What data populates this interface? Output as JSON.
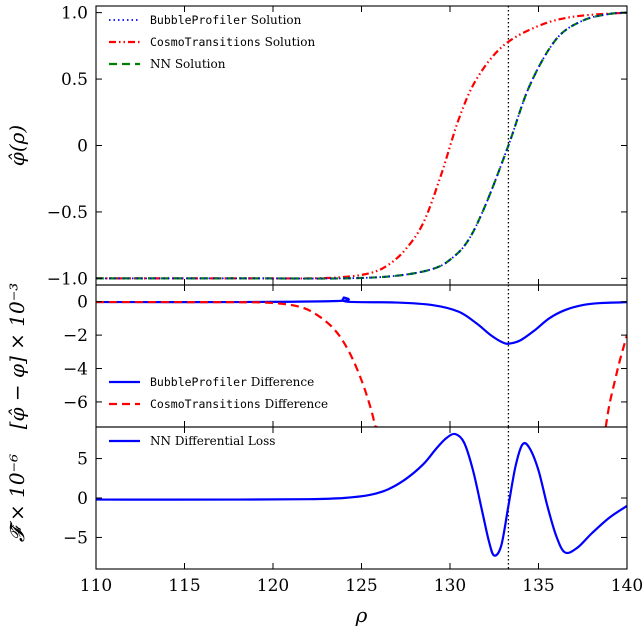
{
  "chart_data": [
    {
      "type": "line",
      "panel": "top",
      "ylabel": "φ̂(ρ)",
      "xlim": [
        110,
        140
      ],
      "ylim": [
        -1.05,
        1.05
      ],
      "yticks": [
        -1.0,
        -0.5,
        0,
        0.5,
        1.0
      ],
      "ytick_labels": [
        "−1.0",
        "−0.5",
        "0",
        "0.5",
        "1.0"
      ],
      "vline_x": 133.3,
      "legend": "top-left",
      "series": [
        {
          "name_mono": "BubbleProfiler",
          "name_suffix": " Solution",
          "color": "#0000ff",
          "style": "dotted",
          "x": [
            110,
            118,
            124,
            127,
            129,
            130,
            131,
            132,
            133.3,
            134.5,
            136,
            137.5,
            139,
            140
          ],
          "y": [
            -1.0,
            -1.0,
            -1.0,
            -0.98,
            -0.93,
            -0.86,
            -0.72,
            -0.45,
            0.0,
            0.45,
            0.8,
            0.94,
            0.99,
            1.0
          ]
        },
        {
          "name_mono": "CosmoTransitions",
          "name_suffix": " Solution",
          "color": "#ff0000",
          "style": "dashdotdot",
          "x": [
            110,
            118,
            122,
            124,
            125.5,
            126.5,
            127.5,
            128.5,
            129.5,
            130.5,
            131.5,
            133,
            135,
            137,
            140
          ],
          "y": [
            -1.0,
            -1.0,
            -1.0,
            -0.99,
            -0.96,
            -0.9,
            -0.78,
            -0.58,
            -0.22,
            0.2,
            0.5,
            0.75,
            0.9,
            0.97,
            1.0
          ]
        },
        {
          "name": "NN Solution",
          "color": "#008000",
          "style": "dashed",
          "x": [
            110,
            118,
            124,
            127,
            129,
            130,
            131,
            132,
            133.3,
            134.5,
            136,
            137.5,
            139,
            140
          ],
          "y": [
            -1.0,
            -1.0,
            -1.0,
            -0.98,
            -0.93,
            -0.86,
            -0.72,
            -0.45,
            0.0,
            0.45,
            0.8,
            0.94,
            0.99,
            1.0
          ]
        }
      ]
    },
    {
      "type": "line",
      "panel": "middle",
      "ylabel": "[φ̂ − φ] × 10⁻³",
      "xlim": [
        110,
        140
      ],
      "ylim": [
        -7.5,
        1.0
      ],
      "yticks": [
        0,
        -2,
        -4,
        -6
      ],
      "ytick_labels": [
        "0",
        "−2",
        "−4",
        "−6"
      ],
      "vline_x": 133.3,
      "legend": "bottom-left",
      "series": [
        {
          "name_mono": "BubbleProfiler",
          "name_suffix": " Difference",
          "color": "#0000ff",
          "style": "solid",
          "x": [
            110,
            118,
            123.8,
            124.0,
            124.2,
            127,
            129,
            130.5,
            131.5,
            132.3,
            133.0,
            133.4,
            134,
            134.8,
            135.6,
            136.5,
            137.5,
            138.5,
            140
          ],
          "y": [
            -0.02,
            -0.02,
            0.05,
            0.25,
            0.0,
            -0.05,
            -0.2,
            -0.6,
            -1.3,
            -2.0,
            -2.45,
            -2.5,
            -2.3,
            -1.7,
            -1.0,
            -0.5,
            -0.2,
            -0.08,
            -0.03
          ]
        },
        {
          "name_mono": "CosmoTransitions",
          "name_suffix": " Difference",
          "color": "#ff0000",
          "style": "dashed",
          "x": [
            110,
            118,
            120,
            121.5,
            122.5,
            123.5,
            124.3,
            125.0,
            125.5,
            125.8,
            125.9
          ],
          "y": [
            -0.02,
            -0.03,
            -0.08,
            -0.3,
            -0.8,
            -1.7,
            -3.0,
            -4.7,
            -6.3,
            -7.5,
            -7.5
          ],
          "x2": [
            138.8,
            139.0,
            139.3,
            139.6,
            140
          ],
          "y2": [
            -7.5,
            -6.2,
            -4.8,
            -3.5,
            -2.0
          ]
        }
      ]
    },
    {
      "type": "line",
      "panel": "bottom",
      "ylabel": "𝓕̂ × 10⁻⁶",
      "xlabel": "ρ",
      "xlim": [
        110,
        140
      ],
      "ylim": [
        -9.0,
        9.0
      ],
      "yticks": [
        5,
        0,
        -5
      ],
      "ytick_labels": [
        "5",
        "0",
        "−5"
      ],
      "xticks": [
        110,
        115,
        120,
        125,
        130,
        135,
        140
      ],
      "xtick_labels": [
        "110",
        "115",
        "120",
        "125",
        "130",
        "135",
        "140"
      ],
      "vline_x": 133.3,
      "legend": "top-left",
      "series": [
        {
          "name": "NN Differential Loss",
          "color": "#0000ff",
          "style": "solid",
          "x": [
            110,
            118,
            122,
            124,
            125.5,
            126.5,
            127.5,
            128.5,
            129.2,
            129.8,
            130.3,
            130.8,
            131.3,
            131.8,
            132.2,
            132.5,
            132.9,
            133.3,
            133.7,
            134.1,
            134.5,
            135.0,
            135.5,
            136.0,
            136.5,
            137.2,
            138.0,
            139.0,
            140
          ],
          "y": [
            -0.2,
            -0.2,
            -0.15,
            0.0,
            0.4,
            1.1,
            2.4,
            4.3,
            6.2,
            7.6,
            8.1,
            7.0,
            3.5,
            -1.5,
            -5.5,
            -7.3,
            -6.0,
            -1.0,
            4.0,
            6.8,
            6.3,
            3.5,
            -1.0,
            -4.8,
            -6.9,
            -6.3,
            -4.5,
            -2.5,
            -1.0
          ]
        }
      ]
    }
  ]
}
